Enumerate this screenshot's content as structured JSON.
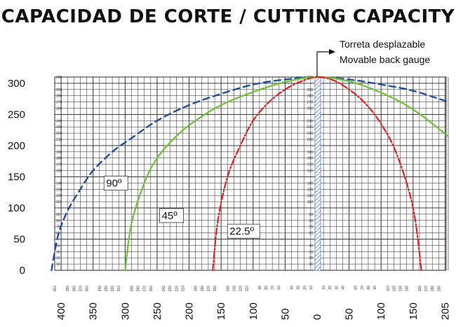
{
  "title": "CAPACIDAD DE CORTE / CUTTING CAPACITY",
  "gauge": {
    "label_es": "Torreta desplazable",
    "label_en": "Movable back gauge"
  },
  "colors": {
    "curve_90": "#1f4fa0",
    "curve_45": "#6fbf3a",
    "curve_22_5": "#e02020",
    "grid": "#222222",
    "gauge_hatch": "#5b7fc0"
  },
  "chart_data": {
    "type": "line",
    "title": "CAPACIDAD DE CORTE / CUTTING CAPACITY",
    "xlabel": "",
    "ylabel": "",
    "xlim": [
      -410,
      205
    ],
    "ylim": [
      0,
      310
    ],
    "x_major_ticks_left": [
      400,
      350,
      300,
      250,
      200,
      150,
      100,
      50,
      0
    ],
    "x_major_ticks_right": [
      50,
      100,
      150,
      205
    ],
    "x_major_ticks_right_positions": [
      50,
      100,
      150,
      200
    ],
    "y_major_ticks": [
      0,
      50,
      100,
      150,
      200,
      250,
      300
    ],
    "x_minor_ticks_left": [
      410,
      390,
      380,
      370,
      360,
      340,
      330,
      320,
      310,
      290,
      280,
      270,
      260,
      240,
      230,
      220,
      210,
      190,
      180,
      170,
      160,
      140,
      130,
      120,
      110,
      90,
      80,
      70,
      60,
      40,
      30,
      20,
      10
    ],
    "x_minor_ticks_right": [
      10,
      20,
      30,
      40,
      60,
      70,
      80,
      90,
      110,
      120,
      130,
      140,
      160,
      170,
      180,
      190
    ],
    "y_minor_ticks": [
      10,
      20,
      30,
      40,
      60,
      70,
      80,
      90,
      110,
      120,
      130,
      140,
      160,
      170,
      180,
      190,
      210,
      220,
      230,
      240,
      260,
      270,
      280,
      290,
      310
    ],
    "grid": true,
    "series": [
      {
        "name": "90º",
        "style": "dashed",
        "x": [
          -415,
          -405,
          -390,
          -370,
          -350,
          -320,
          -290,
          -250,
          -200,
          -150,
          -100,
          -50,
          0,
          50,
          100,
          150,
          205
        ],
        "y": [
          0,
          55,
          95,
          130,
          160,
          190,
          212,
          240,
          265,
          283,
          298,
          306,
          310,
          306,
          298,
          288,
          270
        ]
      },
      {
        "name": "45º",
        "style": "dotted",
        "x": [
          -300,
          -290,
          -270,
          -250,
          -220,
          -190,
          -150,
          -100,
          -50,
          0,
          50,
          100,
          150,
          205
        ],
        "y": [
          0,
          75,
          140,
          180,
          215,
          240,
          265,
          286,
          302,
          310,
          303,
          285,
          258,
          215
        ]
      },
      {
        "name": "22.5º",
        "style": "dashdot",
        "x": [
          -163,
          -155,
          -140,
          -120,
          -100,
          -75,
          -50,
          -25,
          0,
          25,
          50,
          75,
          100,
          125,
          150,
          163
        ],
        "y": [
          0,
          80,
          150,
          200,
          240,
          270,
          290,
          303,
          310,
          305,
          290,
          268,
          235,
          185,
          100,
          0
        ]
      }
    ],
    "labels": {
      "curve_90": "90º",
      "curve_45": "45º",
      "curve_22_5": "22.5º"
    }
  }
}
